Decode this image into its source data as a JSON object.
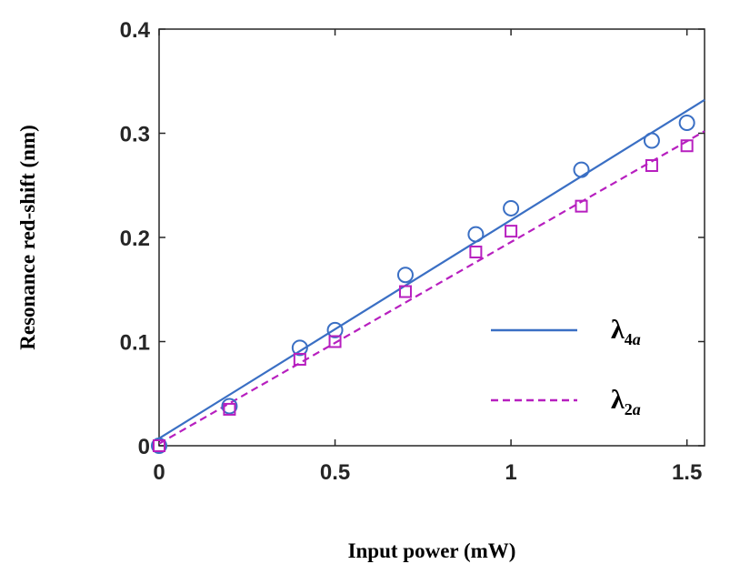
{
  "chart_data": {
    "type": "line",
    "xlabel": "Input power (mW)",
    "ylabel": "Resonance red-shift (nm)",
    "xlim": [
      0,
      1.55
    ],
    "ylim": [
      0,
      0.4
    ],
    "xticks": [
      0,
      0.5,
      1,
      1.5
    ],
    "yticks": [
      0,
      0.1,
      0.2,
      0.3,
      0.4
    ],
    "xtick_labels": [
      "0",
      "0.5",
      "1",
      "1.5"
    ],
    "ytick_labels": [
      "0",
      "0.1",
      "0.2",
      "0.3",
      "0.4"
    ],
    "grid": false,
    "legend_position": "lower-right",
    "series": [
      {
        "name": "λ4a",
        "symbol": "λ",
        "subscript_number": "4",
        "subscript_letter": "a",
        "color": "#3a6fc4",
        "marker": "circle",
        "line_style": "solid",
        "fit": [
          [
            0,
            0.007
          ],
          [
            1.55,
            0.332
          ]
        ],
        "points": [
          {
            "x": 0,
            "y": 0
          },
          {
            "x": 0.2,
            "y": 0.038
          },
          {
            "x": 0.4,
            "y": 0.094
          },
          {
            "x": 0.5,
            "y": 0.111
          },
          {
            "x": 0.7,
            "y": 0.164
          },
          {
            "x": 0.9,
            "y": 0.203
          },
          {
            "x": 1.0,
            "y": 0.228
          },
          {
            "x": 1.2,
            "y": 0.265
          },
          {
            "x": 1.4,
            "y": 0.293
          },
          {
            "x": 1.5,
            "y": 0.31
          }
        ]
      },
      {
        "name": "λ2a",
        "symbol": "λ",
        "subscript_number": "2",
        "subscript_letter": "a",
        "color": "#b71fbf",
        "marker": "square",
        "line_style": "dashed",
        "fit": [
          [
            0,
            0.002
          ],
          [
            1.55,
            0.302
          ]
        ],
        "points": [
          {
            "x": 0,
            "y": 0
          },
          {
            "x": 0.2,
            "y": 0.035
          },
          {
            "x": 0.4,
            "y": 0.083
          },
          {
            "x": 0.5,
            "y": 0.1
          },
          {
            "x": 0.7,
            "y": 0.148
          },
          {
            "x": 0.9,
            "y": 0.186
          },
          {
            "x": 1.0,
            "y": 0.206
          },
          {
            "x": 1.2,
            "y": 0.23
          },
          {
            "x": 1.4,
            "y": 0.269
          },
          {
            "x": 1.5,
            "y": 0.288
          }
        ]
      }
    ]
  }
}
